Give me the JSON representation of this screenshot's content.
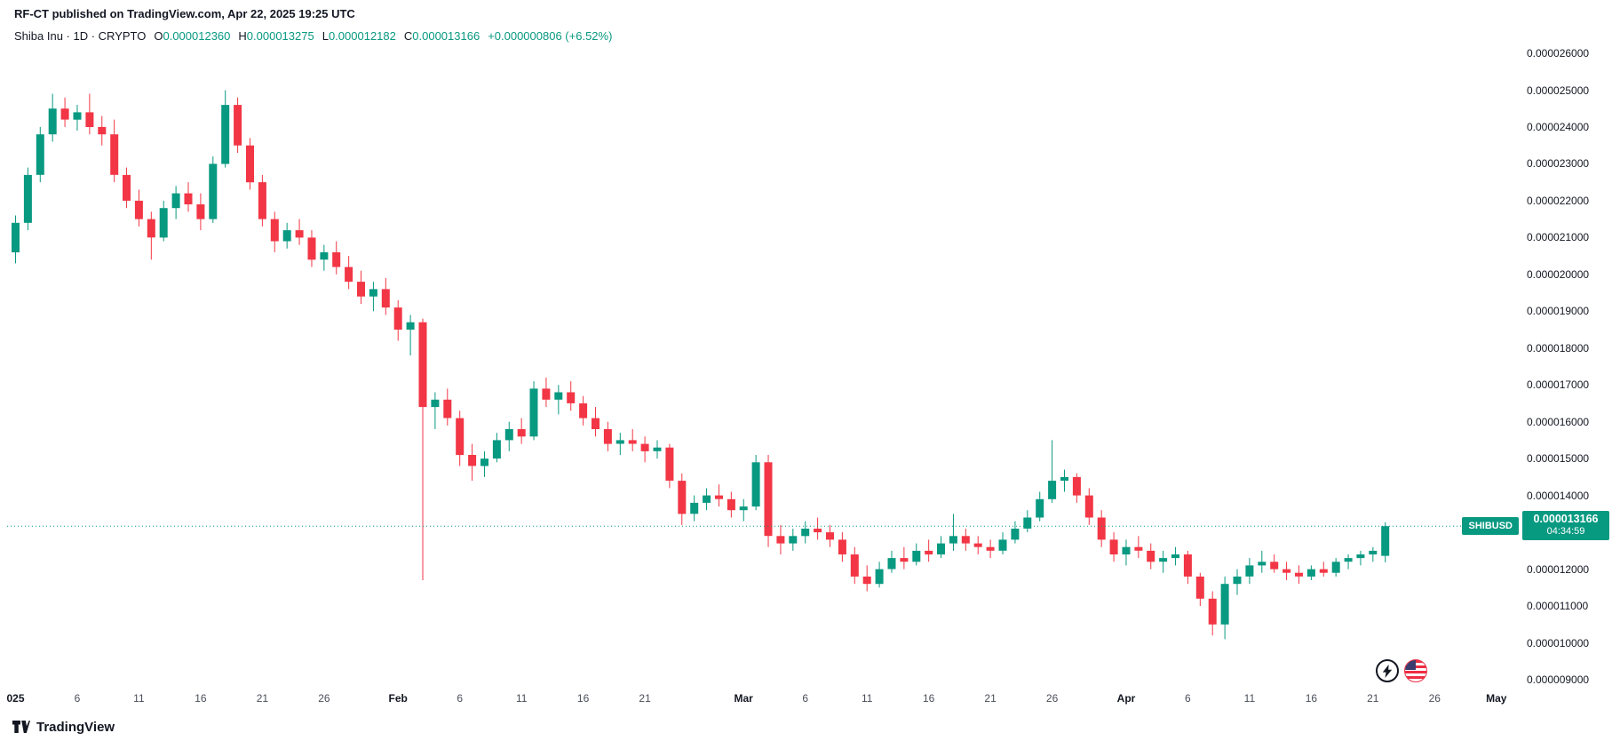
{
  "attribution": {
    "text": "RF-CT published on TradingView.com, Apr 22, 2025 19:25 UTC"
  },
  "legend": {
    "title": "Shiba Inu · 1D · CRYPTO",
    "o_label": "O",
    "o_value": "0.000012360",
    "h_label": "H",
    "h_value": "0.000013275",
    "l_label": "L",
    "l_value": "0.000012182",
    "c_label": "C",
    "c_value": "0.000013166",
    "change": "+0.000000806 (+6.52%)"
  },
  "price_label": {
    "symbol": "SHIBUSD",
    "price": "0.000013166",
    "countdown": "04:34:59"
  },
  "footer": {
    "brand": "TradingView"
  },
  "event_markers": [
    "lightning-icon",
    "us-flag-icon"
  ],
  "colors": {
    "up": "#089981",
    "down": "#F23645",
    "text": "#131722",
    "bg": "#FFFFFF"
  },
  "price_axis": {
    "ticks": [
      {
        "value": 2.6e-05,
        "label": "0.000026000"
      },
      {
        "value": 2.5e-05,
        "label": "0.000025000"
      },
      {
        "value": 2.4e-05,
        "label": "0.000024000"
      },
      {
        "value": 2.3e-05,
        "label": "0.000023000"
      },
      {
        "value": 2.2e-05,
        "label": "0.000022000"
      },
      {
        "value": 2.1e-05,
        "label": "0.000021000"
      },
      {
        "value": 2e-05,
        "label": "0.000020000"
      },
      {
        "value": 1.9e-05,
        "label": "0.000019000"
      },
      {
        "value": 1.8e-05,
        "label": "0.000018000"
      },
      {
        "value": 1.7e-05,
        "label": "0.000017000"
      },
      {
        "value": 1.6e-05,
        "label": "0.000016000"
      },
      {
        "value": 1.5e-05,
        "label": "0.000015000"
      },
      {
        "value": 1.4e-05,
        "label": "0.000014000"
      },
      {
        "value": 1.2e-05,
        "label": "0.000012000"
      },
      {
        "value": 1.1e-05,
        "label": "0.000011000"
      },
      {
        "value": 1e-05,
        "label": "0.000010000"
      },
      {
        "value": 9e-06,
        "label": "0.000009000"
      }
    ]
  },
  "time_axis": {
    "labels": [
      {
        "text": "025",
        "day": 0,
        "major": true
      },
      {
        "text": "6",
        "day": 5
      },
      {
        "text": "11",
        "day": 10
      },
      {
        "text": "16",
        "day": 15
      },
      {
        "text": "21",
        "day": 20
      },
      {
        "text": "26",
        "day": 25
      },
      {
        "text": "Feb",
        "day": 31,
        "major": true
      },
      {
        "text": "6",
        "day": 36
      },
      {
        "text": "11",
        "day": 41
      },
      {
        "text": "16",
        "day": 46
      },
      {
        "text": "21",
        "day": 51
      },
      {
        "text": "Mar",
        "day": 59,
        "major": true
      },
      {
        "text": "6",
        "day": 64
      },
      {
        "text": "11",
        "day": 69
      },
      {
        "text": "16",
        "day": 74
      },
      {
        "text": "21",
        "day": 79
      },
      {
        "text": "26",
        "day": 84
      },
      {
        "text": "Apr",
        "day": 90,
        "major": true
      },
      {
        "text": "6",
        "day": 95
      },
      {
        "text": "11",
        "day": 100
      },
      {
        "text": "16",
        "day": 105
      },
      {
        "text": "21",
        "day": 110
      },
      {
        "text": "26",
        "day": 115
      },
      {
        "text": "May",
        "day": 120,
        "major": true
      }
    ]
  },
  "chart_data": {
    "type": "candlestick",
    "symbol": "SHIBUSD",
    "interval": "1D",
    "exchange": "CRYPTO",
    "period": "2025-01-01 to 2025-04-22",
    "y_range": [
      9e-06,
      2.6e-05
    ],
    "last_price": 1.3166e-05,
    "last_change": "+0.000000806 (+6.52%)",
    "ohlc_readout": {
      "open": 1.236e-05,
      "high": 1.3275e-05,
      "low": 1.2182e-05,
      "close": 1.3166e-05
    },
    "candles_format": "[open, high, low, close] USD per daily candle, left-to-right",
    "candles": [
      [
        2.06e-05,
        2.16e-05,
        2.03e-05,
        2.14e-05
      ],
      [
        2.14e-05,
        2.29e-05,
        2.12e-05,
        2.27e-05
      ],
      [
        2.27e-05,
        2.4e-05,
        2.25e-05,
        2.38e-05
      ],
      [
        2.38e-05,
        2.49e-05,
        2.36e-05,
        2.45e-05
      ],
      [
        2.45e-05,
        2.48e-05,
        2.4e-05,
        2.42e-05
      ],
      [
        2.42e-05,
        2.46e-05,
        2.39e-05,
        2.44e-05
      ],
      [
        2.44e-05,
        2.49e-05,
        2.38e-05,
        2.4e-05
      ],
      [
        2.4e-05,
        2.43e-05,
        2.35e-05,
        2.38e-05
      ],
      [
        2.38e-05,
        2.42e-05,
        2.25e-05,
        2.27e-05
      ],
      [
        2.27e-05,
        2.29e-05,
        2.18e-05,
        2.2e-05
      ],
      [
        2.2e-05,
        2.23e-05,
        2.13e-05,
        2.15e-05
      ],
      [
        2.15e-05,
        2.17e-05,
        2.04e-05,
        2.1e-05
      ],
      [
        2.1e-05,
        2.2e-05,
        2.09e-05,
        2.18e-05
      ],
      [
        2.18e-05,
        2.24e-05,
        2.15e-05,
        2.22e-05
      ],
      [
        2.22e-05,
        2.25e-05,
        2.17e-05,
        2.19e-05
      ],
      [
        2.19e-05,
        2.22e-05,
        2.12e-05,
        2.15e-05
      ],
      [
        2.15e-05,
        2.32e-05,
        2.14e-05,
        2.3e-05
      ],
      [
        2.3e-05,
        2.5e-05,
        2.29e-05,
        2.46e-05
      ],
      [
        2.46e-05,
        2.48e-05,
        2.33e-05,
        2.35e-05
      ],
      [
        2.35e-05,
        2.37e-05,
        2.23e-05,
        2.25e-05
      ],
      [
        2.25e-05,
        2.27e-05,
        2.13e-05,
        2.15e-05
      ],
      [
        2.15e-05,
        2.17e-05,
        2.06e-05,
        2.09e-05
      ],
      [
        2.09e-05,
        2.14e-05,
        2.07e-05,
        2.12e-05
      ],
      [
        2.12e-05,
        2.15e-05,
        2.08e-05,
        2.1e-05
      ],
      [
        2.1e-05,
        2.12e-05,
        2.02e-05,
        2.04e-05
      ],
      [
        2.04e-05,
        2.08e-05,
        2.01e-05,
        2.06e-05
      ],
      [
        2.06e-05,
        2.09e-05,
        2e-05,
        2.02e-05
      ],
      [
        2.02e-05,
        2.05e-05,
        1.96e-05,
        1.98e-05
      ],
      [
        1.98e-05,
        2.01e-05,
        1.92e-05,
        1.94e-05
      ],
      [
        1.94e-05,
        1.98e-05,
        1.9e-05,
        1.96e-05
      ],
      [
        1.96e-05,
        1.99e-05,
        1.89e-05,
        1.91e-05
      ],
      [
        1.91e-05,
        1.93e-05,
        1.82e-05,
        1.85e-05
      ],
      [
        1.85e-05,
        1.89e-05,
        1.78e-05,
        1.87e-05
      ],
      [
        1.87e-05,
        1.88e-05,
        1.17e-05,
        1.64e-05
      ],
      [
        1.64e-05,
        1.68e-05,
        1.58e-05,
        1.66e-05
      ],
      [
        1.66e-05,
        1.69e-05,
        1.59e-05,
        1.61e-05
      ],
      [
        1.61e-05,
        1.63e-05,
        1.48e-05,
        1.51e-05
      ],
      [
        1.51e-05,
        1.54e-05,
        1.44e-05,
        1.48e-05
      ],
      [
        1.48e-05,
        1.52e-05,
        1.45e-05,
        1.5e-05
      ],
      [
        1.5e-05,
        1.57e-05,
        1.49e-05,
        1.55e-05
      ],
      [
        1.55e-05,
        1.6e-05,
        1.52e-05,
        1.58e-05
      ],
      [
        1.58e-05,
        1.61e-05,
        1.54e-05,
        1.56e-05
      ],
      [
        1.56e-05,
        1.71e-05,
        1.55e-05,
        1.69e-05
      ],
      [
        1.69e-05,
        1.72e-05,
        1.64e-05,
        1.66e-05
      ],
      [
        1.66e-05,
        1.7e-05,
        1.62e-05,
        1.68e-05
      ],
      [
        1.68e-05,
        1.71e-05,
        1.63e-05,
        1.65e-05
      ],
      [
        1.65e-05,
        1.67e-05,
        1.59e-05,
        1.61e-05
      ],
      [
        1.61e-05,
        1.64e-05,
        1.56e-05,
        1.58e-05
      ],
      [
        1.58e-05,
        1.6e-05,
        1.52e-05,
        1.54e-05
      ],
      [
        1.54e-05,
        1.57e-05,
        1.51e-05,
        1.55e-05
      ],
      [
        1.55e-05,
        1.58e-05,
        1.52e-05,
        1.54e-05
      ],
      [
        1.54e-05,
        1.56e-05,
        1.49e-05,
        1.52e-05
      ],
      [
        1.52e-05,
        1.55e-05,
        1.5e-05,
        1.53e-05
      ],
      [
        1.53e-05,
        1.54e-05,
        1.42e-05,
        1.44e-05
      ],
      [
        1.44e-05,
        1.46e-05,
        1.32e-05,
        1.35e-05
      ],
      [
        1.35e-05,
        1.4e-05,
        1.33e-05,
        1.38e-05
      ],
      [
        1.38e-05,
        1.42e-05,
        1.36e-05,
        1.4e-05
      ],
      [
        1.4e-05,
        1.43e-05,
        1.37e-05,
        1.39e-05
      ],
      [
        1.39e-05,
        1.41e-05,
        1.34e-05,
        1.36e-05
      ],
      [
        1.36e-05,
        1.39e-05,
        1.33e-05,
        1.37e-05
      ],
      [
        1.37e-05,
        1.51e-05,
        1.36e-05,
        1.49e-05
      ],
      [
        1.49e-05,
        1.51e-05,
        1.26e-05,
        1.29e-05
      ],
      [
        1.29e-05,
        1.32e-05,
        1.24e-05,
        1.27e-05
      ],
      [
        1.27e-05,
        1.31e-05,
        1.25e-05,
        1.29e-05
      ],
      [
        1.29e-05,
        1.33e-05,
        1.27e-05,
        1.31e-05
      ],
      [
        1.31e-05,
        1.34e-05,
        1.28e-05,
        1.3e-05
      ],
      [
        1.3e-05,
        1.32e-05,
        1.26e-05,
        1.28e-05
      ],
      [
        1.28e-05,
        1.3e-05,
        1.22e-05,
        1.24e-05
      ],
      [
        1.24e-05,
        1.26e-05,
        1.16e-05,
        1.18e-05
      ],
      [
        1.18e-05,
        1.21e-05,
        1.14e-05,
        1.16e-05
      ],
      [
        1.16e-05,
        1.22e-05,
        1.15e-05,
        1.2e-05
      ],
      [
        1.2e-05,
        1.25e-05,
        1.19e-05,
        1.23e-05
      ],
      [
        1.23e-05,
        1.26e-05,
        1.2e-05,
        1.22e-05
      ],
      [
        1.22e-05,
        1.27e-05,
        1.21e-05,
        1.25e-05
      ],
      [
        1.25e-05,
        1.28e-05,
        1.22e-05,
        1.24e-05
      ],
      [
        1.24e-05,
        1.29e-05,
        1.23e-05,
        1.27e-05
      ],
      [
        1.27e-05,
        1.35e-05,
        1.25e-05,
        1.29e-05
      ],
      [
        1.29e-05,
        1.31e-05,
        1.25e-05,
        1.27e-05
      ],
      [
        1.27e-05,
        1.29e-05,
        1.24e-05,
        1.26e-05
      ],
      [
        1.26e-05,
        1.28e-05,
        1.23e-05,
        1.25e-05
      ],
      [
        1.25e-05,
        1.3e-05,
        1.24e-05,
        1.28e-05
      ],
      [
        1.28e-05,
        1.33e-05,
        1.27e-05,
        1.31e-05
      ],
      [
        1.31e-05,
        1.36e-05,
        1.3e-05,
        1.34e-05
      ],
      [
        1.34e-05,
        1.41e-05,
        1.33e-05,
        1.39e-05
      ],
      [
        1.39e-05,
        1.55e-05,
        1.38e-05,
        1.44e-05
      ],
      [
        1.44e-05,
        1.47e-05,
        1.41e-05,
        1.45e-05
      ],
      [
        1.45e-05,
        1.46e-05,
        1.38e-05,
        1.4e-05
      ],
      [
        1.4e-05,
        1.42e-05,
        1.32e-05,
        1.34e-05
      ],
      [
        1.34e-05,
        1.36e-05,
        1.26e-05,
        1.28e-05
      ],
      [
        1.28e-05,
        1.3e-05,
        1.22e-05,
        1.24e-05
      ],
      [
        1.24e-05,
        1.28e-05,
        1.21e-05,
        1.26e-05
      ],
      [
        1.26e-05,
        1.29e-05,
        1.23e-05,
        1.25e-05
      ],
      [
        1.25e-05,
        1.27e-05,
        1.2e-05,
        1.22e-05
      ],
      [
        1.22e-05,
        1.25e-05,
        1.19e-05,
        1.23e-05
      ],
      [
        1.23e-05,
        1.26e-05,
        1.21e-05,
        1.24e-05
      ],
      [
        1.24e-05,
        1.25e-05,
        1.16e-05,
        1.18e-05
      ],
      [
        1.18e-05,
        1.19e-05,
        1.1e-05,
        1.12e-05
      ],
      [
        1.12e-05,
        1.14e-05,
        1.02e-05,
        1.05e-05
      ],
      [
        1.05e-05,
        1.18e-05,
        1.01e-05,
        1.16e-05
      ],
      [
        1.16e-05,
        1.2e-05,
        1.13e-05,
        1.18e-05
      ],
      [
        1.18e-05,
        1.23e-05,
        1.16e-05,
        1.21e-05
      ],
      [
        1.21e-05,
        1.25e-05,
        1.19e-05,
        1.22e-05
      ],
      [
        1.22e-05,
        1.24e-05,
        1.19e-05,
        1.2e-05
      ],
      [
        1.2e-05,
        1.22e-05,
        1.17e-05,
        1.19e-05
      ],
      [
        1.19e-05,
        1.21e-05,
        1.16e-05,
        1.18e-05
      ],
      [
        1.18e-05,
        1.21e-05,
        1.17e-05,
        1.2e-05
      ],
      [
        1.2e-05,
        1.22e-05,
        1.18e-05,
        1.19e-05
      ],
      [
        1.19e-05,
        1.23e-05,
        1.18e-05,
        1.22e-05
      ],
      [
        1.22e-05,
        1.24e-05,
        1.2e-05,
        1.23e-05
      ],
      [
        1.23e-05,
        1.25e-05,
        1.21e-05,
        1.24e-05
      ],
      [
        1.24e-05,
        1.26e-05,
        1.22e-05,
        1.25e-05
      ],
      [
        1.236e-05,
        1.3275e-05,
        1.2182e-05,
        1.3166e-05
      ]
    ]
  }
}
